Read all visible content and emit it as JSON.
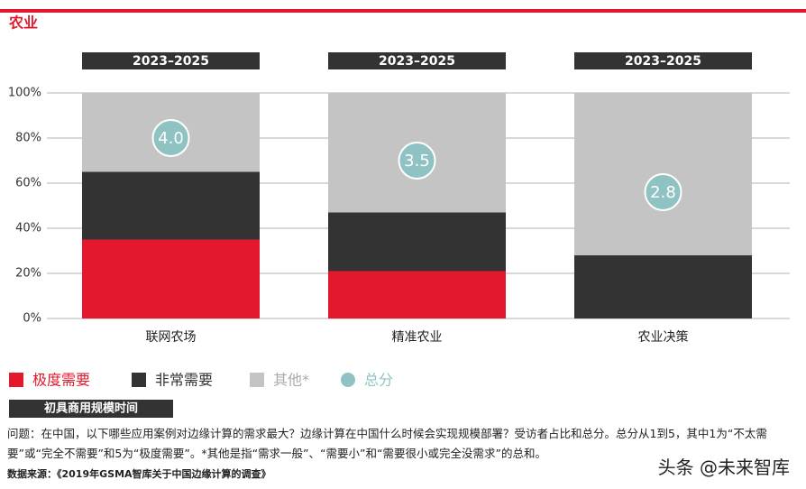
{
  "chart_data": {
    "type": "stacked_bar",
    "title": "农业",
    "categories": [
      "联网农场",
      "精准农业",
      "农业决策"
    ],
    "period_labels": [
      "2023–2025",
      "2023–2025",
      "2023–2025"
    ],
    "series": [
      {
        "name": "极度需要",
        "color": "#e3182d",
        "values": [
          35,
          21,
          0
        ]
      },
      {
        "name": "非常需要",
        "color": "#333333",
        "values": [
          30,
          26,
          28
        ]
      },
      {
        "name": "其他*",
        "color": "#c4c4c4",
        "values": [
          35,
          53,
          72
        ]
      }
    ],
    "score": {
      "name": "总分",
      "color": "#8fc3c3",
      "values": [
        4.0,
        3.5,
        2.8
      ],
      "value_labels": [
        "4.0",
        "3.5",
        "2.8"
      ]
    },
    "ylim": [
      0,
      100
    ],
    "yticks": [
      {
        "value": 0,
        "label": "0%"
      },
      {
        "value": 20,
        "label": "20%"
      },
      {
        "value": 40,
        "label": "40%"
      },
      {
        "value": 60,
        "label": "60%"
      },
      {
        "value": 80,
        "label": "80%"
      },
      {
        "value": 100,
        "label": "100%"
      }
    ],
    "grid": true
  },
  "subheader": "初具商用规模时间",
  "question": "问题：在中国，以下哪些应用案例对边缘计算的需求最大？边缘计算在中国什么时候会实现规模部署？受访者占比和总分。总分从1到5，其中1为“不太需要”或“完全不需要”和5为“极度需要”。*其他是指“需求一般”、“需要小”和“需要很小或完全没需求”的总和。",
  "source": "数据来源：《2019年GSMA智库关于中国边缘计算的调查》",
  "watermark": "头条 @未来智库"
}
